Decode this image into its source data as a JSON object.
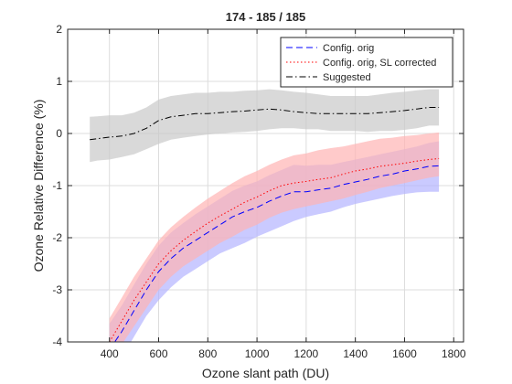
{
  "chart_data": {
    "type": "line",
    "title": "174 - 185 / 185",
    "xlabel": "Ozone slant path (DU)",
    "ylabel": "Ozone Relative Difference (%)",
    "xlim": [
      230,
      1840
    ],
    "ylim": [
      -4,
      2
    ],
    "xticks": [
      400,
      600,
      800,
      1000,
      1200,
      1400,
      1600,
      1800
    ],
    "yticks": [
      -4,
      -3,
      -2,
      -1,
      0,
      1,
      2
    ],
    "grid": true,
    "legend_position": "top-right",
    "series": [
      {
        "name": "Config. orig",
        "color": "#0000ff",
        "band_color": "#b3b3ff",
        "line_style": "dashed",
        "x": [
          400,
          450,
          500,
          550,
          600,
          650,
          700,
          750,
          800,
          850,
          900,
          950,
          1000,
          1050,
          1100,
          1150,
          1200,
          1250,
          1300,
          1350,
          1400,
          1450,
          1500,
          1550,
          1600,
          1650,
          1700,
          1740
        ],
        "values": [
          -4.15,
          -3.8,
          -3.4,
          -3.0,
          -2.65,
          -2.4,
          -2.2,
          -2.05,
          -1.9,
          -1.75,
          -1.6,
          -1.5,
          -1.42,
          -1.3,
          -1.2,
          -1.12,
          -1.12,
          -1.08,
          -1.05,
          -0.98,
          -0.93,
          -0.88,
          -0.82,
          -0.78,
          -0.72,
          -0.68,
          -0.63,
          -0.62
        ],
        "band_low": [
          -4.6,
          -4.3,
          -3.9,
          -3.5,
          -3.2,
          -2.95,
          -2.75,
          -2.6,
          -2.45,
          -2.3,
          -2.2,
          -2.1,
          -1.98,
          -1.88,
          -1.78,
          -1.68,
          -1.6,
          -1.55,
          -1.5,
          -1.42,
          -1.35,
          -1.3,
          -1.25,
          -1.2,
          -1.16,
          -1.13,
          -1.12,
          -1.12
        ],
        "band_high": [
          -3.65,
          -3.3,
          -2.9,
          -2.5,
          -2.15,
          -1.9,
          -1.72,
          -1.55,
          -1.4,
          -1.25,
          -1.1,
          -1.0,
          -0.92,
          -0.8,
          -0.7,
          -0.6,
          -0.62,
          -0.6,
          -0.6,
          -0.55,
          -0.5,
          -0.45,
          -0.4,
          -0.35,
          -0.3,
          -0.25,
          -0.18,
          -0.15
        ]
      },
      {
        "name": "Config. orig, SL corrected",
        "color": "#ff0000",
        "band_color": "#ffb3b3",
        "line_style": "dotted",
        "x": [
          400,
          450,
          500,
          550,
          600,
          650,
          700,
          750,
          800,
          850,
          900,
          950,
          1000,
          1050,
          1100,
          1150,
          1200,
          1250,
          1300,
          1350,
          1400,
          1450,
          1500,
          1550,
          1600,
          1650,
          1700,
          1740
        ],
        "values": [
          -4.0,
          -3.6,
          -3.2,
          -2.85,
          -2.5,
          -2.25,
          -2.05,
          -1.88,
          -1.72,
          -1.58,
          -1.45,
          -1.32,
          -1.22,
          -1.1,
          -1.0,
          -0.95,
          -0.92,
          -0.88,
          -0.85,
          -0.78,
          -0.72,
          -0.68,
          -0.63,
          -0.6,
          -0.57,
          -0.53,
          -0.5,
          -0.48
        ],
        "band_low": [
          -4.45,
          -4.05,
          -3.7,
          -3.35,
          -3.0,
          -2.75,
          -2.55,
          -2.4,
          -2.25,
          -2.1,
          -1.98,
          -1.85,
          -1.75,
          -1.62,
          -1.52,
          -1.45,
          -1.4,
          -1.35,
          -1.3,
          -1.25,
          -1.18,
          -1.12,
          -1.05,
          -1.0,
          -0.95,
          -0.9,
          -0.85,
          -0.82
        ],
        "band_high": [
          -3.55,
          -3.15,
          -2.75,
          -2.4,
          -2.05,
          -1.8,
          -1.6,
          -1.42,
          -1.25,
          -1.1,
          -0.95,
          -0.82,
          -0.72,
          -0.6,
          -0.5,
          -0.42,
          -0.38,
          -0.32,
          -0.28,
          -0.25,
          -0.2,
          -0.15,
          -0.1,
          -0.08,
          -0.05,
          -0.03,
          0.0,
          0.02
        ]
      },
      {
        "name": "Suggested",
        "color": "#000000",
        "band_color": "#c9c9c9",
        "line_style": "dashdot",
        "x": [
          320,
          350,
          400,
          450,
          500,
          550,
          600,
          650,
          700,
          750,
          800,
          850,
          900,
          950,
          1000,
          1050,
          1100,
          1150,
          1200,
          1250,
          1300,
          1350,
          1400,
          1450,
          1500,
          1550,
          1600,
          1650,
          1700,
          1740
        ],
        "values": [
          -0.12,
          -0.1,
          -0.07,
          -0.05,
          0.0,
          0.1,
          0.25,
          0.32,
          0.35,
          0.38,
          0.38,
          0.4,
          0.42,
          0.43,
          0.45,
          0.47,
          0.45,
          0.42,
          0.4,
          0.38,
          0.38,
          0.38,
          0.38,
          0.38,
          0.4,
          0.42,
          0.44,
          0.47,
          0.5,
          0.5
        ],
        "band_low": [
          -0.55,
          -0.52,
          -0.5,
          -0.45,
          -0.4,
          -0.3,
          -0.2,
          -0.12,
          -0.08,
          -0.05,
          -0.02,
          0.0,
          0.02,
          0.03,
          0.05,
          0.08,
          0.1,
          0.1,
          0.08,
          0.08,
          0.05,
          0.05,
          0.05,
          0.03,
          0.05,
          0.05,
          0.07,
          0.1,
          0.15,
          0.15
        ],
        "band_high": [
          0.32,
          0.33,
          0.35,
          0.35,
          0.4,
          0.5,
          0.65,
          0.72,
          0.75,
          0.78,
          0.78,
          0.8,
          0.8,
          0.82,
          0.83,
          0.85,
          0.83,
          0.8,
          0.78,
          0.75,
          0.72,
          0.72,
          0.72,
          0.72,
          0.75,
          0.78,
          0.8,
          0.83,
          0.85,
          0.85
        ]
      }
    ]
  }
}
